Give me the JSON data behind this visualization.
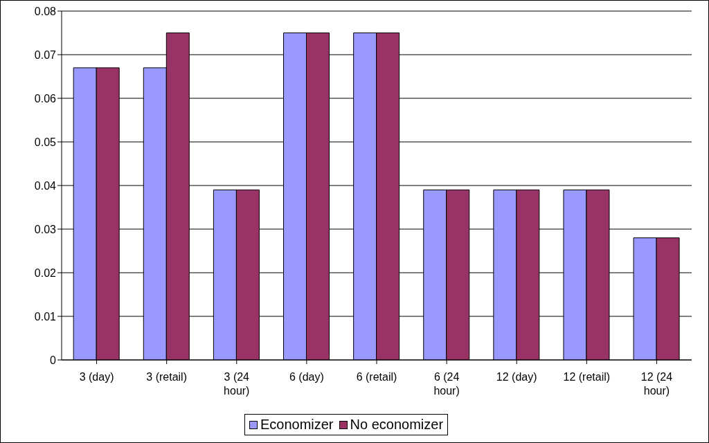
{
  "chart_data": {
    "type": "bar",
    "categories": [
      "3 (day)",
      "3 (retail)",
      "3 (24 hour)",
      "6 (day)",
      "6 (retail)",
      "6 (24 hour)",
      "12 (day)",
      "12 (retail)",
      "12 (24 hour)"
    ],
    "series": [
      {
        "name": "Economizer",
        "color": "#9999ff",
        "values": [
          0.067,
          0.067,
          0.039,
          0.075,
          0.075,
          0.039,
          0.039,
          0.039,
          0.028
        ]
      },
      {
        "name": "No economizer",
        "color": "#993366",
        "values": [
          0.067,
          0.075,
          0.039,
          0.075,
          0.075,
          0.039,
          0.039,
          0.039,
          0.028
        ]
      }
    ],
    "ylim": [
      0,
      0.08
    ],
    "yticks": [
      0,
      0.01,
      0.02,
      0.03,
      0.04,
      0.05,
      0.06,
      0.07,
      0.08
    ],
    "grid": "y",
    "legend": "bottom"
  }
}
